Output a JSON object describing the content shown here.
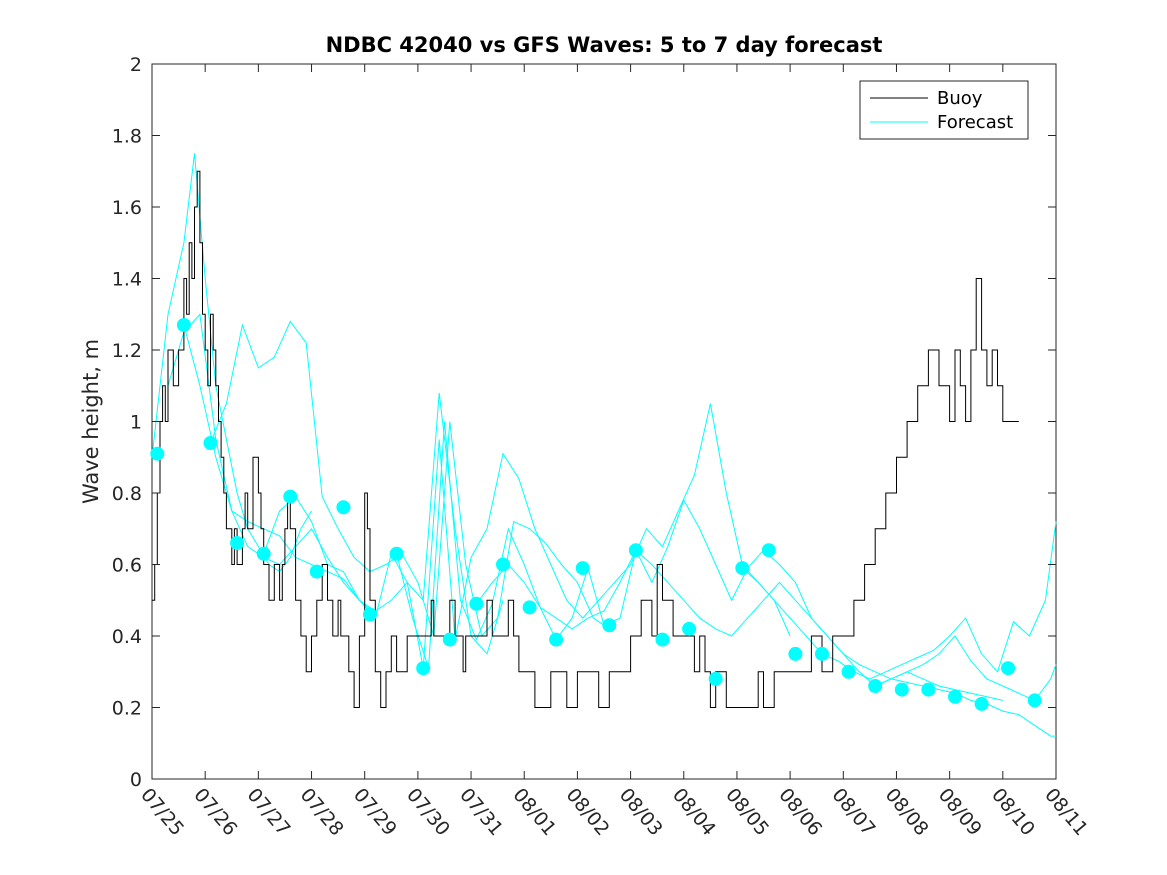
{
  "chart_data": {
    "type": "line",
    "title": "NDBC 42040 vs GFS Waves: 5 to 7 day forecast",
    "xlabel": "",
    "ylabel": "Wave height, m",
    "xlim": [
      "07/25",
      "08/11"
    ],
    "ylim": [
      0,
      2
    ],
    "x_tick_labels": [
      "07/25",
      "07/26",
      "07/27",
      "07/28",
      "07/29",
      "07/30",
      "07/31",
      "08/01",
      "08/02",
      "08/03",
      "08/04",
      "08/05",
      "08/06",
      "08/07",
      "08/08",
      "08/09",
      "08/10",
      "08/11"
    ],
    "y_tick_labels": [
      "0",
      "0.2",
      "0.4",
      "0.6",
      "0.8",
      "1",
      "1.2",
      "1.4",
      "1.6",
      "1.8",
      "2"
    ],
    "y_ticks": [
      0,
      0.2,
      0.4,
      0.6,
      0.8,
      1,
      1.2,
      1.4,
      1.6,
      1.8,
      2
    ],
    "grid": false,
    "legend_position": "top-right",
    "legend": [
      {
        "name": "Buoy",
        "color": "#000000"
      },
      {
        "name": "Forecast",
        "color": "#00ffff"
      }
    ],
    "buoy": {
      "name": "Buoy",
      "color": "#000000",
      "x_days": [
        0,
        0.05,
        0.1,
        0.15,
        0.2,
        0.25,
        0.3,
        0.4,
        0.5,
        0.6,
        0.65,
        0.7,
        0.75,
        0.8,
        0.85,
        0.9,
        0.95,
        1.0,
        1.05,
        1.1,
        1.15,
        1.2,
        1.25,
        1.3,
        1.35,
        1.4,
        1.45,
        1.5,
        1.55,
        1.6,
        1.65,
        1.7,
        1.75,
        1.8,
        1.9,
        2.0,
        2.05,
        2.1,
        2.15,
        2.2,
        2.3,
        2.4,
        2.45,
        2.5,
        2.55,
        2.6,
        2.7,
        2.8,
        2.9,
        3.0,
        3.1,
        3.2,
        3.3,
        3.4,
        3.5,
        3.55,
        3.6,
        3.7,
        3.8,
        3.9,
        4.0,
        4.05,
        4.1,
        4.2,
        4.3,
        4.4,
        4.5,
        4.6,
        4.7,
        4.8,
        4.9,
        5.0,
        5.1,
        5.2,
        5.25,
        5.3,
        5.4,
        5.5,
        5.55,
        5.6,
        5.7,
        5.8,
        5.85,
        5.9,
        6.0,
        6.1,
        6.2,
        6.3,
        6.4,
        6.5,
        6.6,
        6.7,
        6.8,
        6.9,
        7.0,
        7.2,
        7.5,
        7.8,
        8.0,
        8.2,
        8.4,
        8.6,
        8.8,
        9.0,
        9.2,
        9.4,
        9.5,
        9.6,
        9.8,
        10.0,
        10.2,
        10.3,
        10.4,
        10.5,
        10.6,
        10.7,
        10.8,
        11.0,
        11.2,
        11.4,
        11.5,
        11.6,
        11.7,
        11.8,
        12.0,
        12.2,
        12.4,
        12.6,
        12.8,
        13.0,
        13.2,
        13.4,
        13.6,
        13.8,
        14.0,
        14.2,
        14.4,
        14.6,
        14.8,
        15.0,
        15.1,
        15.2,
        15.3,
        15.4,
        15.5,
        15.6,
        15.7,
        15.8,
        15.9,
        16.0,
        16.1,
        16.2,
        16.3
      ],
      "values": [
        0.5,
        0.6,
        0.8,
        1.0,
        1.1,
        1.0,
        1.2,
        1.1,
        1.2,
        1.4,
        1.3,
        1.5,
        1.4,
        1.6,
        1.7,
        1.5,
        1.3,
        1.2,
        1.1,
        1.3,
        1.2,
        1.1,
        1.0,
        0.9,
        0.8,
        0.7,
        0.7,
        0.6,
        0.7,
        0.6,
        0.6,
        0.7,
        0.8,
        0.7,
        0.9,
        0.8,
        0.7,
        0.6,
        0.6,
        0.5,
        0.6,
        0.5,
        0.6,
        0.7,
        0.8,
        0.7,
        0.5,
        0.4,
        0.3,
        0.4,
        0.5,
        0.6,
        0.5,
        0.4,
        0.5,
        0.4,
        0.4,
        0.3,
        0.2,
        0.4,
        0.8,
        0.7,
        0.5,
        0.3,
        0.2,
        0.3,
        0.4,
        0.3,
        0.3,
        0.4,
        0.4,
        0.4,
        0.4,
        0.4,
        0.5,
        0.4,
        0.4,
        0.4,
        0.4,
        0.5,
        0.4,
        0.4,
        0.3,
        0.4,
        0.4,
        0.4,
        0.4,
        0.5,
        0.4,
        0.4,
        0.4,
        0.5,
        0.4,
        0.3,
        0.3,
        0.2,
        0.3,
        0.2,
        0.3,
        0.3,
        0.2,
        0.3,
        0.3,
        0.4,
        0.5,
        0.4,
        0.6,
        0.5,
        0.4,
        0.4,
        0.3,
        0.4,
        0.3,
        0.2,
        0.3,
        0.3,
        0.2,
        0.2,
        0.2,
        0.3,
        0.2,
        0.2,
        0.3,
        0.3,
        0.3,
        0.3,
        0.4,
        0.3,
        0.4,
        0.4,
        0.5,
        0.6,
        0.7,
        0.8,
        0.9,
        1.0,
        1.1,
        1.2,
        1.1,
        1.0,
        1.2,
        1.1,
        1.0,
        1.2,
        1.4,
        1.2,
        1.1,
        1.2,
        1.1,
        1.0,
        1.0,
        1.0,
        1.0
      ]
    },
    "forecast_dots": {
      "name": "Forecast",
      "color": "#00ffff",
      "x_days": [
        0.1,
        0.6,
        1.1,
        1.6,
        2.1,
        2.6,
        3.1,
        3.6,
        4.1,
        4.6,
        5.1,
        5.6,
        6.1,
        6.6,
        7.1,
        7.6,
        8.1,
        8.6,
        9.1,
        9.6,
        10.1,
        10.6,
        11.1,
        11.6,
        12.1,
        12.6,
        13.1,
        13.6,
        14.1,
        14.6,
        15.1,
        15.6,
        16.1,
        16.6
      ],
      "values": [
        0.91,
        1.27,
        0.94,
        0.66,
        0.63,
        0.79,
        0.58,
        0.76,
        0.46,
        0.63,
        0.31,
        0.39,
        0.49,
        0.6,
        0.48,
        0.39,
        0.59,
        0.43,
        0.64,
        0.39,
        0.42,
        0.28,
        0.59,
        0.64,
        0.35,
        0.35,
        0.3,
        0.26,
        0.25,
        0.25,
        0.23,
        0.21,
        0.31,
        0.22
      ]
    },
    "forecast_lines": [
      {
        "x_days": [
          0,
          0.3,
          0.6,
          0.8,
          1.0,
          1.2,
          1.4,
          1.6,
          1.8,
          2.0,
          2.2,
          2.4,
          2.6,
          2.8,
          3.0
        ],
        "values": [
          0.9,
          1.3,
          1.5,
          1.75,
          1.4,
          1.1,
          0.95,
          0.8,
          0.7,
          0.65,
          0.6,
          0.58,
          0.62,
          0.7,
          0.75
        ]
      },
      {
        "x_days": [
          0.3,
          0.6,
          0.9,
          1.2,
          1.5,
          1.8,
          2.1,
          2.4,
          2.7,
          3.0,
          3.3,
          3.6,
          3.9,
          4.2
        ],
        "values": [
          1.1,
          1.25,
          1.3,
          0.95,
          0.75,
          0.65,
          0.62,
          0.6,
          0.65,
          0.7,
          0.62,
          0.55,
          0.5,
          0.46
        ]
      },
      {
        "x_days": [
          0.6,
          0.9,
          1.2,
          1.5,
          1.8,
          2.1,
          2.4,
          2.7,
          3.0,
          3.3,
          3.6,
          3.9,
          4.2,
          4.5,
          4.8,
          5.1,
          5.4,
          5.7,
          6.0,
          6.3,
          6.6
        ],
        "values": [
          1.27,
          1.1,
          0.9,
          0.75,
          0.72,
          0.7,
          0.68,
          0.62,
          0.6,
          0.58,
          0.56,
          0.5,
          0.47,
          0.5,
          0.55,
          0.5,
          1.08,
          0.7,
          0.4,
          0.35,
          0.5
        ]
      },
      {
        "x_days": [
          1.1,
          1.4,
          1.7,
          2.0,
          2.3,
          2.6,
          2.9,
          3.2,
          3.5,
          3.8,
          4.1,
          4.4,
          4.7,
          5.0,
          5.3,
          5.6,
          5.9,
          6.2,
          6.5,
          6.8,
          7.1,
          7.4,
          7.7,
          8.0,
          8.3,
          8.6
        ],
        "values": [
          0.94,
          1.05,
          1.27,
          1.15,
          1.18,
          1.28,
          1.22,
          0.79,
          0.7,
          0.62,
          0.58,
          0.6,
          0.63,
          0.55,
          0.4,
          1.0,
          0.6,
          0.4,
          0.45,
          0.72,
          0.7,
          0.66,
          0.6,
          0.55,
          0.45,
          0.42
        ]
      },
      {
        "x_days": [
          2.1,
          2.4,
          2.7,
          3.0,
          3.3,
          3.6,
          3.9,
          4.2,
          4.5,
          4.8,
          5.1,
          5.4,
          5.7,
          6.0,
          6.3,
          6.6,
          6.9,
          7.2,
          7.5,
          7.8,
          8.1,
          8.4,
          8.7,
          9.0,
          9.3,
          9.6,
          9.9,
          10.2,
          10.5,
          10.8,
          11.1,
          11.4,
          11.7,
          12.0
        ],
        "values": [
          0.63,
          0.75,
          0.79,
          0.72,
          0.6,
          0.58,
          0.5,
          0.45,
          0.63,
          0.55,
          0.31,
          0.95,
          0.39,
          0.62,
          0.7,
          0.91,
          0.84,
          0.7,
          0.6,
          0.5,
          0.45,
          0.5,
          0.55,
          0.6,
          0.7,
          0.65,
          0.75,
          0.85,
          1.05,
          0.8,
          0.6,
          0.55,
          0.5,
          0.4
        ]
      },
      {
        "x_days": [
          4.6,
          4.9,
          5.2,
          5.5,
          5.8,
          6.1,
          6.4,
          6.7,
          7.0,
          7.3,
          7.6,
          7.9,
          8.2,
          8.5,
          8.8,
          9.1,
          9.4,
          9.7,
          10.0,
          10.3,
          10.6,
          10.9,
          11.2,
          11.5,
          11.8,
          12.1,
          12.4,
          12.7,
          13.0,
          13.3,
          13.6,
          13.9,
          14.2,
          14.5,
          14.8,
          15.1,
          15.4,
          15.7,
          16.0
        ],
        "values": [
          0.63,
          0.45,
          0.31,
          1.0,
          0.5,
          0.39,
          0.49,
          0.7,
          0.6,
          0.48,
          0.39,
          0.45,
          0.59,
          0.43,
          0.45,
          0.64,
          0.55,
          0.65,
          0.78,
          0.7,
          0.6,
          0.5,
          0.59,
          0.64,
          0.6,
          0.55,
          0.45,
          0.4,
          0.35,
          0.3,
          0.26,
          0.28,
          0.3,
          0.28,
          0.26,
          0.25,
          0.24,
          0.23,
          0.22
        ]
      },
      {
        "x_days": [
          6.1,
          6.4,
          6.7,
          7.0,
          7.3,
          7.6,
          7.9,
          8.2,
          8.5,
          8.8,
          9.1,
          9.4,
          9.7,
          10.0,
          10.3,
          10.6,
          10.9,
          11.2,
          11.5,
          11.8,
          12.1,
          12.4,
          12.7,
          13.0,
          13.3,
          13.6,
          13.9,
          14.2,
          14.5,
          14.8,
          15.1,
          15.4,
          15.7,
          16.0,
          16.3,
          16.6,
          16.9,
          17.0
        ],
        "values": [
          0.49,
          0.55,
          0.6,
          0.55,
          0.48,
          0.45,
          0.42,
          0.45,
          0.47,
          0.55,
          0.64,
          0.6,
          0.55,
          0.5,
          0.45,
          0.42,
          0.4,
          0.45,
          0.5,
          0.55,
          0.5,
          0.45,
          0.4,
          0.35,
          0.32,
          0.3,
          0.28,
          0.27,
          0.26,
          0.25,
          0.24,
          0.22,
          0.21,
          0.19,
          0.18,
          0.15,
          0.12,
          0.12
        ]
      },
      {
        "x_days": [
          11.1,
          11.4,
          11.7,
          12.0,
          12.3,
          12.6,
          12.9,
          13.2,
          13.5,
          13.8,
          14.1,
          14.4,
          14.7,
          15.0,
          15.3,
          15.6,
          15.9,
          16.2,
          16.5,
          16.8,
          17.0
        ],
        "values": [
          0.59,
          0.55,
          0.5,
          0.45,
          0.4,
          0.35,
          0.33,
          0.3,
          0.28,
          0.3,
          0.32,
          0.34,
          0.36,
          0.4,
          0.45,
          0.35,
          0.3,
          0.44,
          0.4,
          0.5,
          0.72
        ]
      },
      {
        "x_days": [
          13.6,
          13.9,
          14.2,
          14.5,
          14.8,
          15.1,
          15.4,
          15.7,
          16.0,
          16.3,
          16.6,
          16.9,
          17.0
        ],
        "values": [
          0.26,
          0.28,
          0.3,
          0.32,
          0.35,
          0.4,
          0.33,
          0.28,
          0.26,
          0.24,
          0.22,
          0.28,
          0.32
        ]
      }
    ]
  }
}
